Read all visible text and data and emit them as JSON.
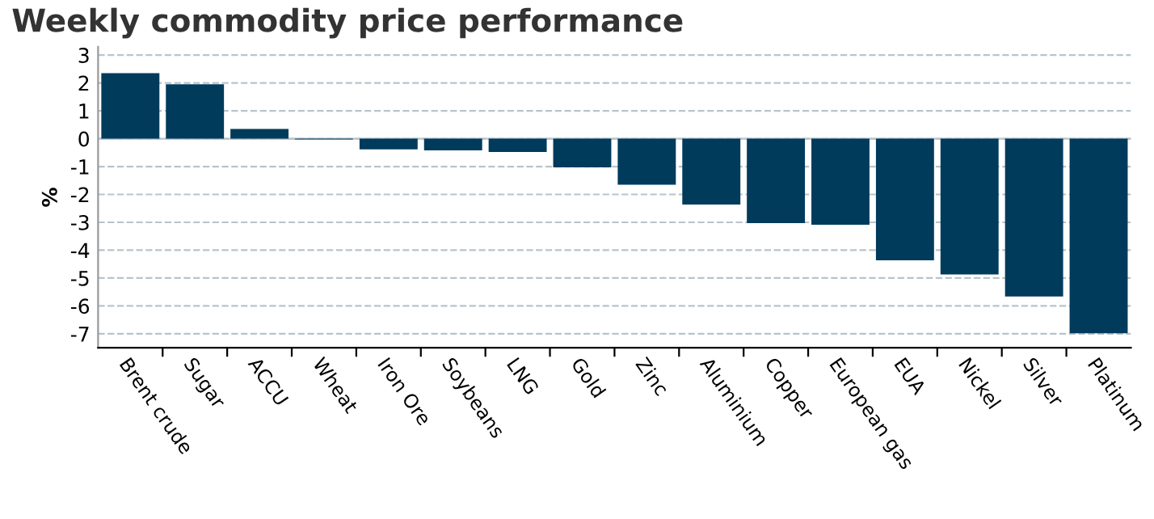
{
  "chart_data": {
    "type": "bar",
    "title": "Weekly commodity price performance",
    "ylabel": "%",
    "categories": [
      "Brent crude",
      "Sugar",
      "ACCU",
      "Wheat",
      "Iron Ore",
      "Soybeans",
      "LNG",
      "Gold",
      "Zinc",
      "Aluminium",
      "Copper",
      "European gas",
      "EUA",
      "Nickel",
      "Silver",
      "Platinum"
    ],
    "values": [
      2.35,
      1.95,
      0.35,
      -0.03,
      -0.38,
      -0.42,
      -0.48,
      -1.03,
      -1.65,
      -2.36,
      -3.03,
      -3.09,
      -4.36,
      -4.87,
      -5.66,
      -6.98
    ],
    "color": "#003b5c",
    "ylim": [
      -7.5,
      3.3
    ],
    "yticks": [
      -7,
      -6,
      -5,
      -4,
      -3,
      -2,
      -1,
      0,
      1,
      2,
      3
    ],
    "grid": "y",
    "legend": false
  }
}
